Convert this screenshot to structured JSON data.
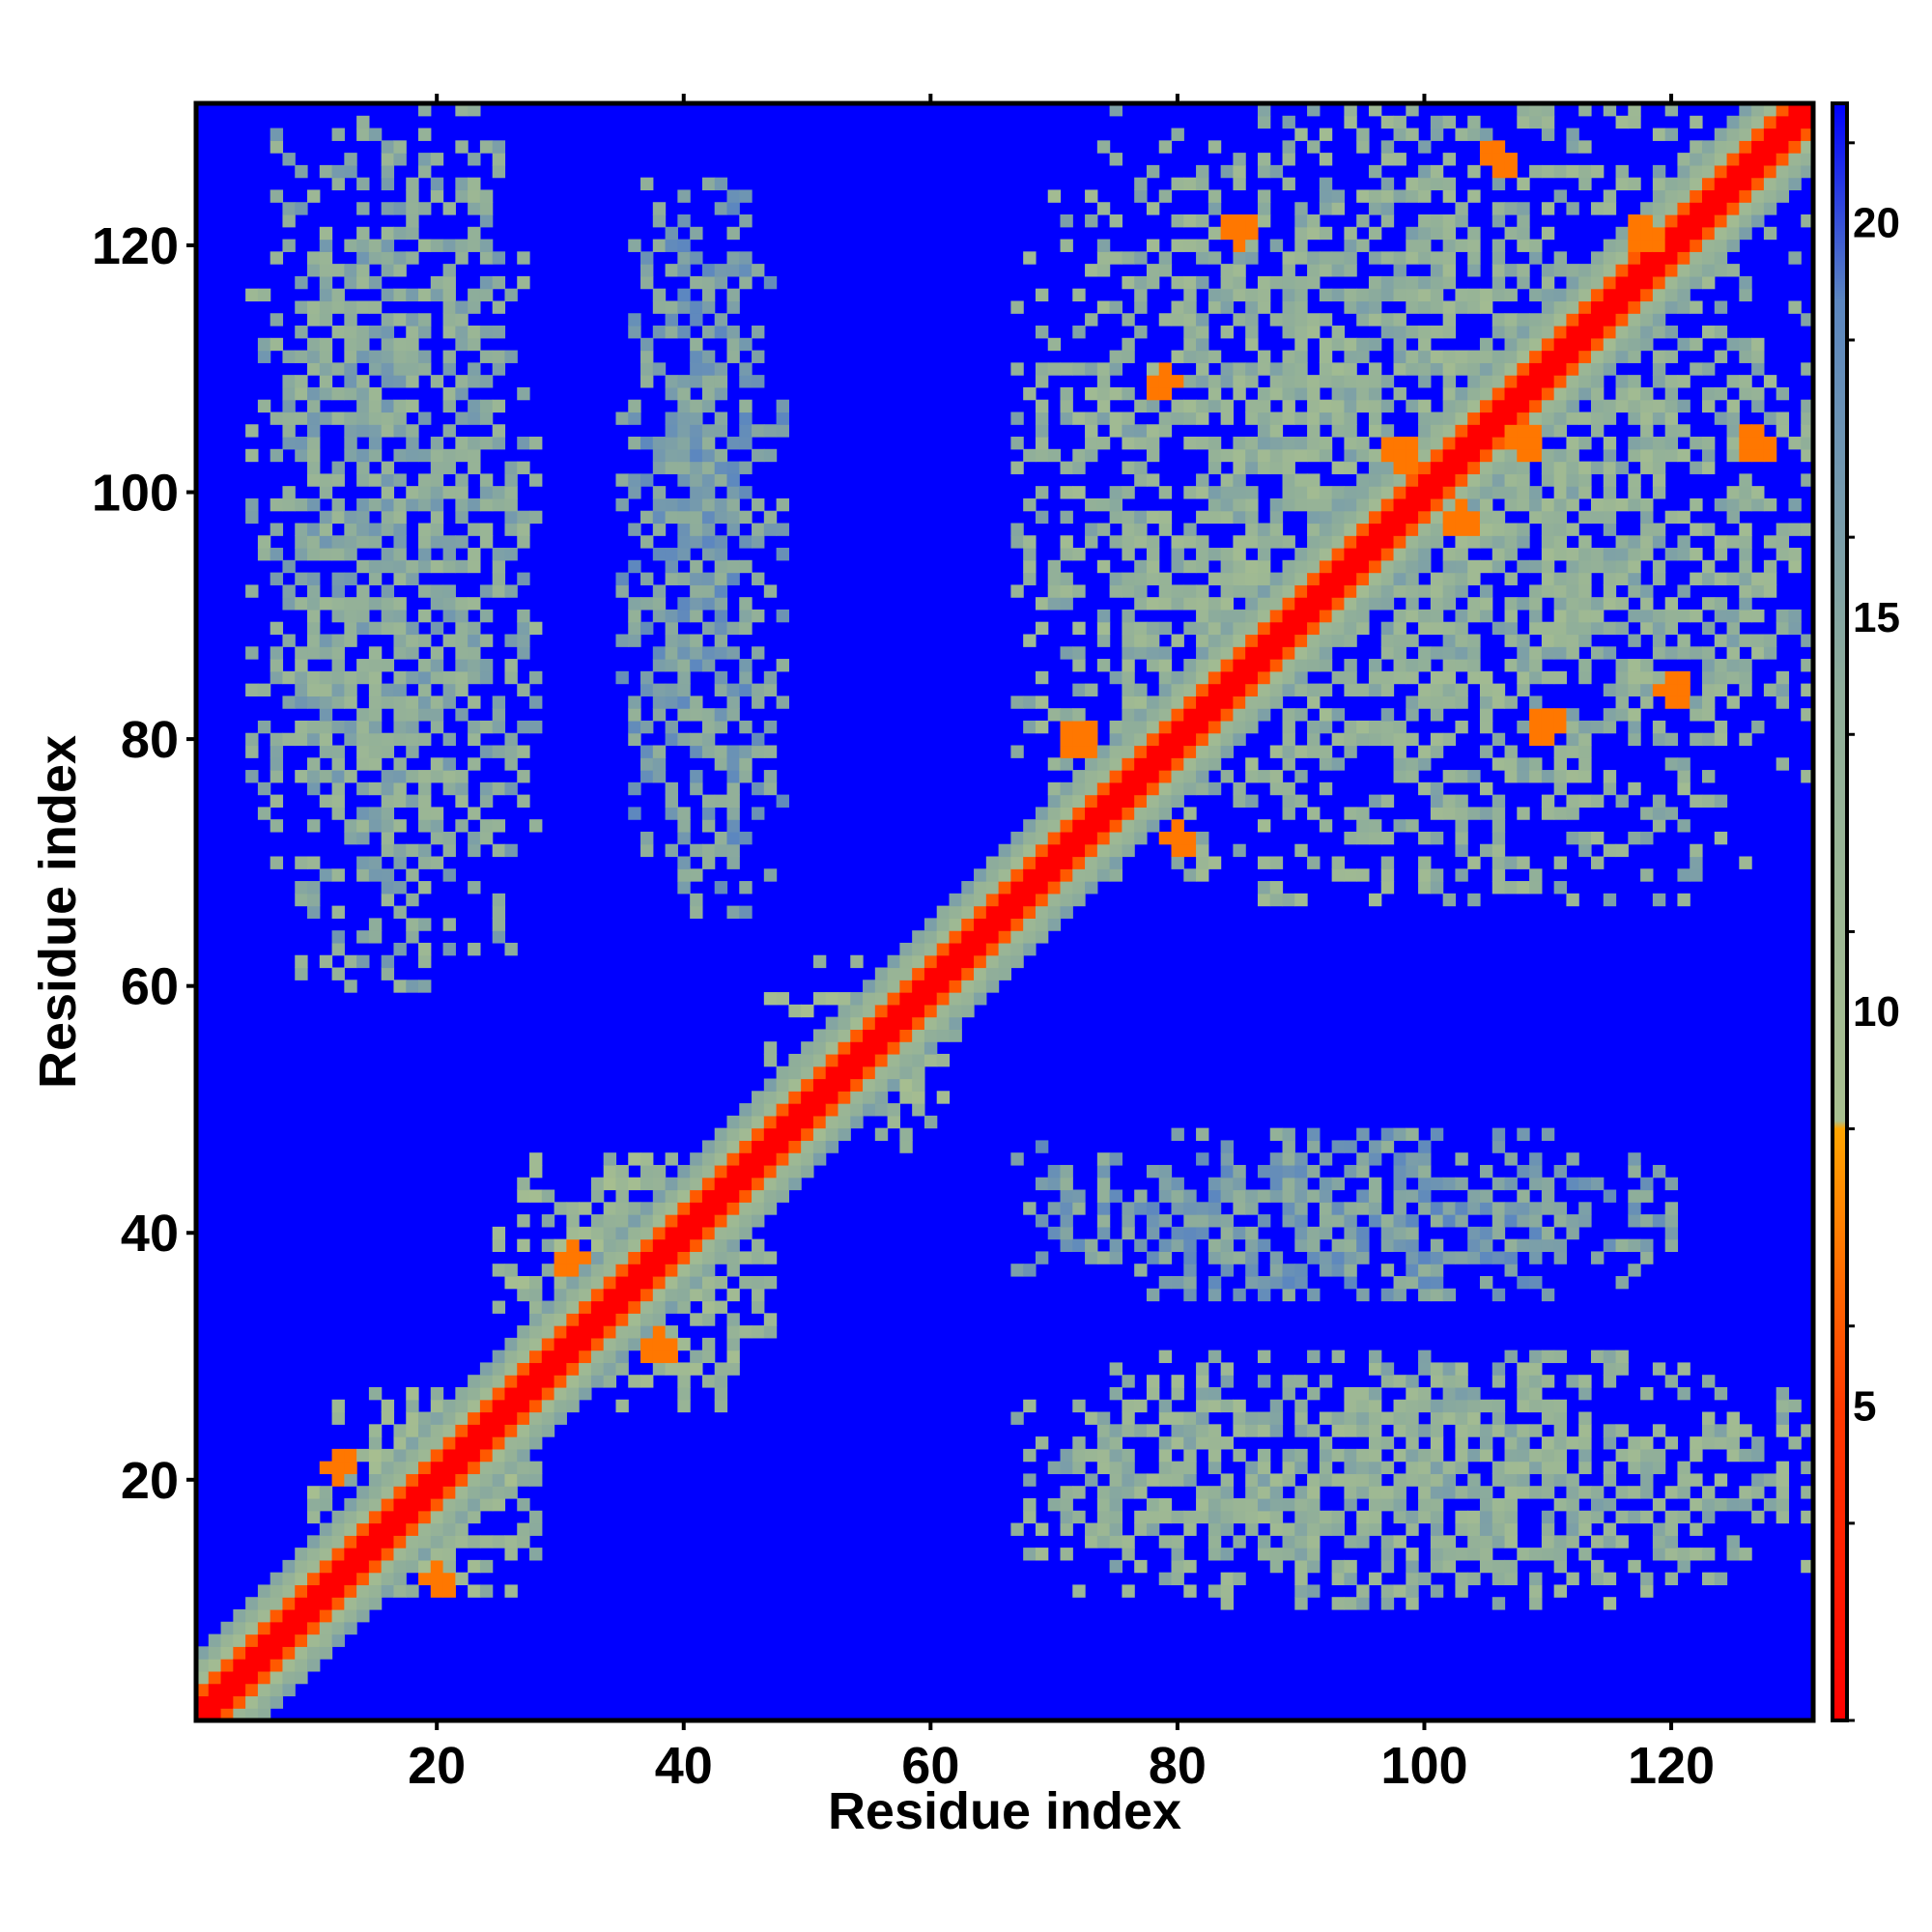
{
  "chart_data": {
    "type": "heatmap",
    "title": "",
    "xlabel": "Residue index",
    "ylabel": "Residue index",
    "n_residues": 131,
    "xlim": [
      1,
      131
    ],
    "ylim": [
      1,
      131
    ],
    "x_ticks": [
      20,
      40,
      60,
      80,
      100,
      120
    ],
    "y_ticks": [
      20,
      40,
      60,
      80,
      100,
      120
    ],
    "x_tick_labels": [
      "20",
      "40",
      "60",
      "80",
      "100",
      "120"
    ],
    "y_tick_labels": [
      "20",
      "40",
      "60",
      "80",
      "100",
      "120"
    ],
    "colorbar": {
      "range": [
        1,
        21.5
      ],
      "ticks": [
        5,
        10,
        15,
        20
      ],
      "tick_labels": [
        "5",
        "10",
        "15",
        "20"
      ],
      "stops": [
        {
          "value": 1,
          "color": "#ff0000"
        },
        {
          "value": 5,
          "color": "#ff3a00"
        },
        {
          "value": 8.5,
          "color": "#ffa500"
        },
        {
          "value": 8.6,
          "color": "#a9c08f"
        },
        {
          "value": 14,
          "color": "#8fae9a"
        },
        {
          "value": 19,
          "color": "#5b86c0"
        },
        {
          "value": 21.5,
          "color": "#0000ff"
        }
      ]
    },
    "background_value": 21.5,
    "diagonal_band": {
      "core_halfwidth": 1,
      "orange_halfwidth": 2,
      "band_halfwidth": 5
    },
    "contact_regions": [
      {
        "x_range": [
          5,
          28
        ],
        "y_range": [
          60,
          131
        ],
        "value": 14
      },
      {
        "x_range": [
          35,
          48
        ],
        "y_range": [
          65,
          125
        ],
        "value": 16
      },
      {
        "x_range": [
          67,
          131
        ],
        "y_range": [
          67,
          131
        ],
        "value": 13
      },
      {
        "x_range": [
          67,
          131
        ],
        "y_range": [
          10,
          30
        ],
        "value": 13
      },
      {
        "x_range": [
          67,
          120
        ],
        "y_range": [
          35,
          48
        ],
        "value": 16
      },
      {
        "x_range": [
          10,
          28
        ],
        "y_range": [
          10,
          27
        ],
        "value": 12
      },
      {
        "x_range": [
          25,
          47
        ],
        "y_range": [
          25,
          46
        ],
        "value": 12
      },
      {
        "x_range": [
          47,
          62
        ],
        "y_range": [
          47,
          62
        ],
        "value": 12
      }
    ],
    "orange_clusters": [
      {
        "x": 12,
        "y": 21
      },
      {
        "x": 20,
        "y": 12
      },
      {
        "x": 31,
        "y": 38
      },
      {
        "x": 38,
        "y": 31
      },
      {
        "x": 72,
        "y": 80
      },
      {
        "x": 80,
        "y": 72
      },
      {
        "x": 85,
        "y": 121
      },
      {
        "x": 79,
        "y": 109
      },
      {
        "x": 118,
        "y": 121
      },
      {
        "x": 103,
        "y": 98
      },
      {
        "x": 98,
        "y": 103
      },
      {
        "x": 108,
        "y": 104
      },
      {
        "x": 120,
        "y": 84
      },
      {
        "x": 110,
        "y": 81
      },
      {
        "x": 127,
        "y": 104
      },
      {
        "x": 106,
        "y": 127
      }
    ]
  }
}
